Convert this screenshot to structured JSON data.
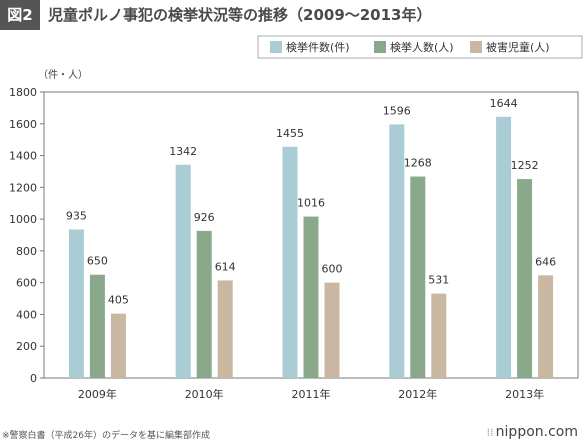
{
  "header": {
    "badge": "図2",
    "title": "児童ポルノ事犯の検挙状況等の推移（2009～2013年）"
  },
  "footer": {
    "source_note": "※警察白書（平成26年）のデータを基に編集部作成",
    "brand": "nippon.com"
  },
  "chart_data": {
    "type": "bar",
    "title": "児童ポルノ事犯の検挙状況等の推移（2009～2013年）",
    "ylabel": "（件・人）",
    "xlabel": "",
    "categories": [
      "2009年",
      "2010年",
      "2011年",
      "2012年",
      "2013年"
    ],
    "series": [
      {
        "name": "検挙件数(件)",
        "color": "#a9ccd5",
        "values": [
          935,
          1342,
          1455,
          1596,
          1644
        ]
      },
      {
        "name": "検挙人数(人)",
        "color": "#8aa88a",
        "values": [
          650,
          926,
          1016,
          1268,
          1252
        ]
      },
      {
        "name": "被害児童(人)",
        "color": "#c9b7a2",
        "values": [
          405,
          614,
          600,
          531,
          646
        ]
      }
    ],
    "ylim": [
      0,
      1800
    ],
    "yticks": [
      0,
      200,
      400,
      600,
      800,
      1000,
      1200,
      1400,
      1600,
      1800
    ],
    "grid": false,
    "legend_position": "top-right",
    "frame_color": "#7a7a7a"
  }
}
